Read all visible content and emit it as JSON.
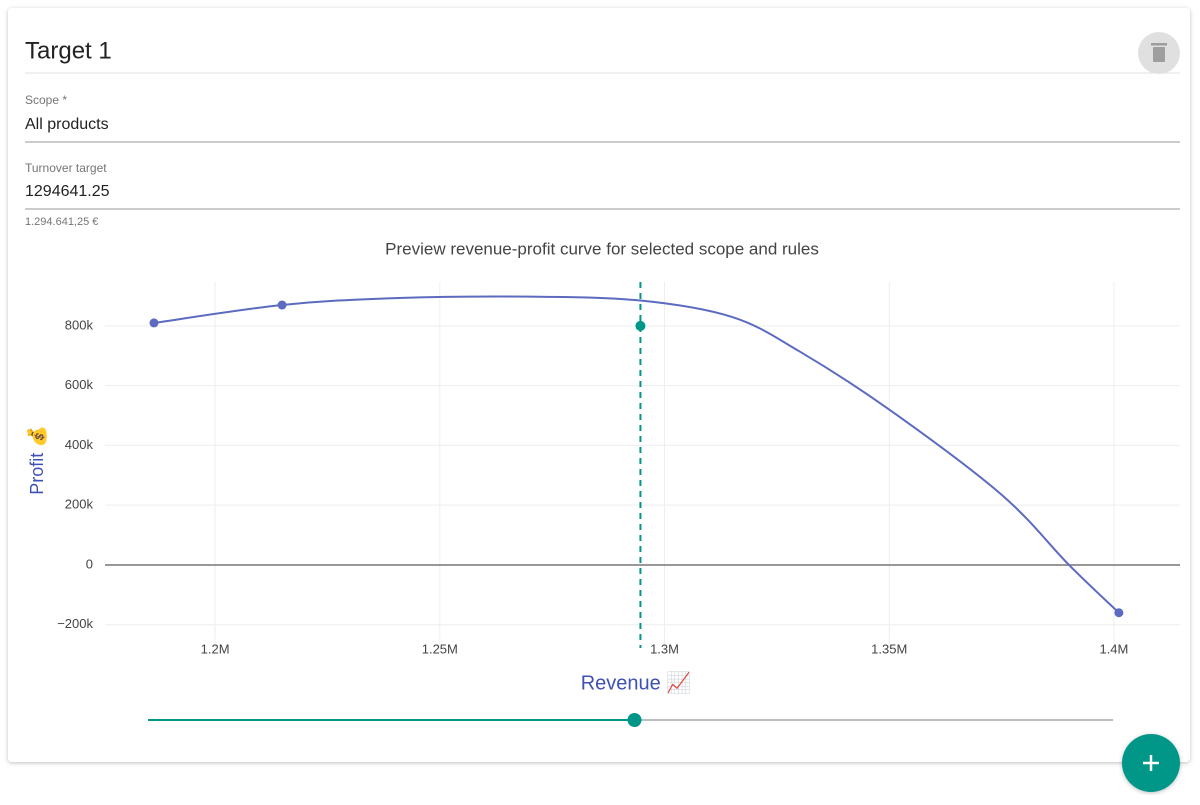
{
  "card": {
    "title": "Target 1",
    "scope_label": "Scope *",
    "scope_value": "All products",
    "turnover_label": "Turnover target",
    "turnover_value": "1294641.25",
    "turnover_helper": "1.294.641,25 €"
  },
  "chart_data": {
    "type": "line",
    "title": "Preview revenue-profit curve for selected scope and rules",
    "x_label": "Revenue 📈",
    "y_label": "Profit 💰",
    "xlim": [
      1175500,
      1414700
    ],
    "ylim": [
      -278000,
      947000
    ],
    "xticks": [
      {
        "value": 1200000,
        "label": "1.2M"
      },
      {
        "value": 1250000,
        "label": "1.25M"
      },
      {
        "value": 1300000,
        "label": "1.3M"
      },
      {
        "value": 1350000,
        "label": "1.35M"
      },
      {
        "value": 1400000,
        "label": "1.4M"
      }
    ],
    "yticks": [
      {
        "value": -200000,
        "label": "−200k"
      },
      {
        "value": 0,
        "label": "0"
      },
      {
        "value": 200000,
        "label": "200k"
      },
      {
        "value": 400000,
        "label": "400k"
      },
      {
        "value": 600000,
        "label": "600k"
      },
      {
        "value": 800000,
        "label": "800k"
      }
    ],
    "grid": true,
    "series": [
      {
        "mode": "lines",
        "color": "#5c6bc0",
        "x": [
          1186400,
          1214900,
          1240000,
          1270000,
          1294641,
          1315000,
          1330000,
          1350000,
          1375000,
          1390000,
          1401100
        ],
        "values": [
          810000,
          870000,
          893000,
          898000,
          885000,
          830000,
          715000,
          520000,
          235000,
          0,
          -160000
        ]
      },
      {
        "mode": "markers",
        "color": "#5c6bc0",
        "x": [
          1186400,
          1214900,
          1401100
        ],
        "values": [
          810000,
          870000,
          -160000
        ]
      }
    ],
    "target": {
      "x": 1294641.25,
      "y": 800000,
      "color": "#009688"
    }
  }
}
